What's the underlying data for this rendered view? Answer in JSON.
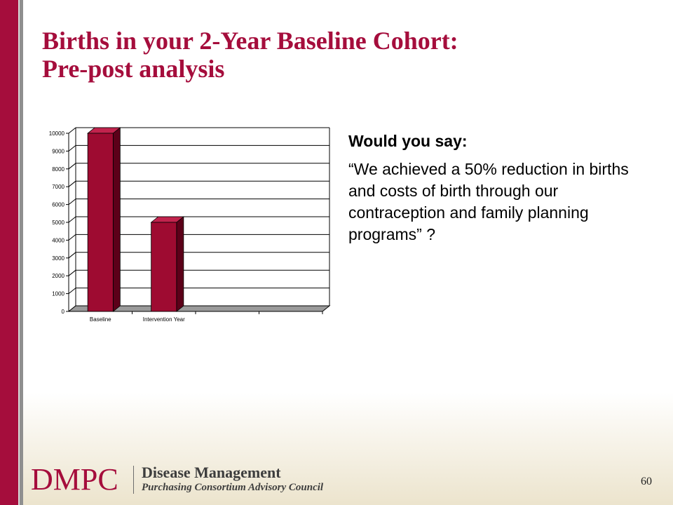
{
  "slide": {
    "title_line1": "Births in your 2-Year Baseline Cohort:",
    "title_line2": "Pre-post analysis",
    "question": "Would you say:",
    "quote": "“We achieved  a 50% reduction in births and costs of birth through our contraception and family planning programs”  ?",
    "page_number": "60"
  },
  "logo": {
    "mark": "DMPC",
    "line1": "Disease Management",
    "line2": "Purchasing Consortium Advisory Council"
  },
  "colors": {
    "brand": "#a50d3c",
    "bar_front": "#9e0b31",
    "bar_side": "#5c0019",
    "bar_top": "#c2234d",
    "floor": "#9a9a9a"
  },
  "chart_data": {
    "type": "bar",
    "style": "3d-column",
    "categories": [
      "Baseline",
      "Intervention Year",
      "",
      ""
    ],
    "values": [
      10000,
      5000,
      null,
      null
    ],
    "y_ticks": [
      0,
      1000,
      2000,
      3000,
      4000,
      5000,
      6000,
      7000,
      8000,
      9000,
      10000
    ],
    "ylim": [
      0,
      10000
    ],
    "grid": true,
    "legend": "none",
    "title": "",
    "xlabel": "",
    "ylabel": ""
  }
}
